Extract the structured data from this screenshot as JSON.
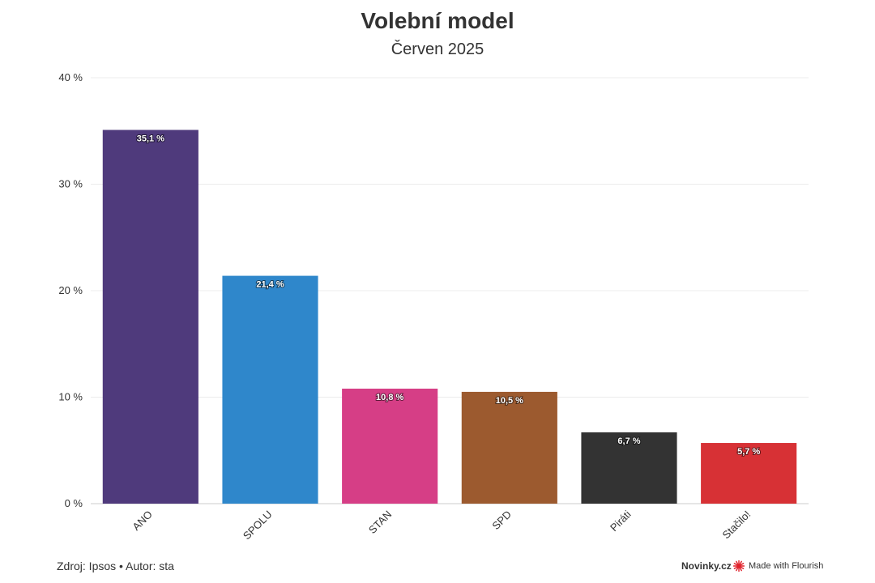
{
  "title": "Volební model",
  "subtitle": "Červen 2025",
  "footer": {
    "source": "Zdroj: Ipsos • Autor: sta",
    "brand": "Novinky.cz",
    "flourish": "Made with Flourish",
    "flourish_icon": "flourish-logo-icon",
    "flourish_color": "#e0202a"
  },
  "chart_data": {
    "type": "bar",
    "title": "Volební model",
    "subtitle": "Červen 2025",
    "categories": [
      "ANO",
      "SPOLU",
      "STAN",
      "SPD",
      "Piráti",
      "Stačilo!"
    ],
    "values": [
      35.1,
      21.4,
      10.8,
      10.5,
      6.7,
      5.7
    ],
    "value_labels": [
      "35,1 %",
      "21,4 %",
      "10,8 %",
      "10,5 %",
      "6,7 %",
      "5,7 %"
    ],
    "colors": [
      "#4f3a7c",
      "#2f87cb",
      "#d63e86",
      "#9c5a2f",
      "#333333",
      "#d73135"
    ],
    "ylim": [
      0,
      40
    ],
    "yticks": [
      0,
      10,
      20,
      30,
      40
    ],
    "ytick_labels": [
      "0 %",
      "10 %",
      "20 %",
      "30 %",
      "40 %"
    ],
    "grid": true,
    "legend": "none"
  }
}
